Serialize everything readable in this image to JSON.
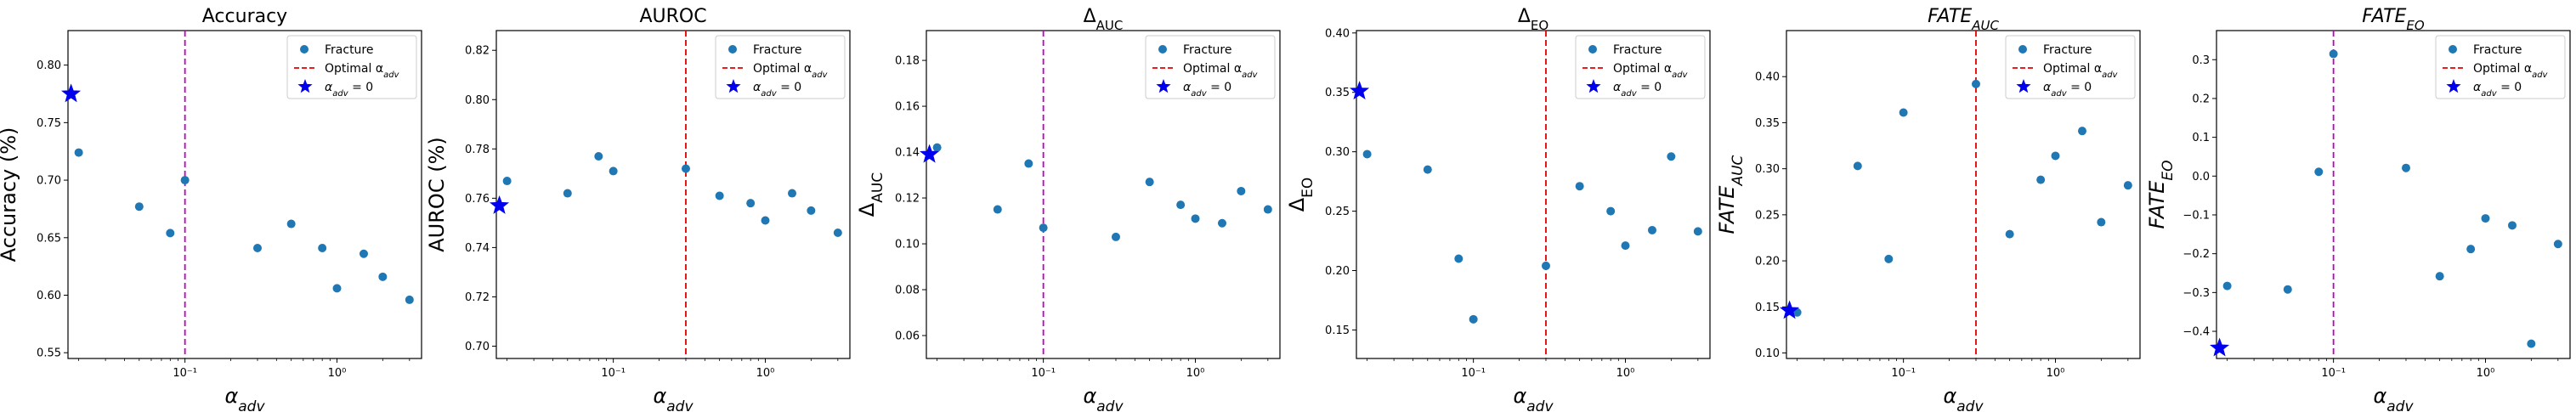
{
  "chart_data": [
    {
      "type": "scatter",
      "title": "Accuracy",
      "xlabel": "α_adv",
      "ylabel": "Accuracy (%)",
      "xscale": "log",
      "xlim": [
        0.017,
        3.6
      ],
      "ylim": [
        0.545,
        0.83
      ],
      "yticks": [
        0.55,
        0.6,
        0.65,
        0.7,
        0.75,
        0.8
      ],
      "ytick_labels": [
        "0.55",
        "0.60",
        "0.65",
        "0.70",
        "0.75",
        "0.80"
      ],
      "xtick_labels": [
        "10⁻¹",
        "10⁰"
      ],
      "vline": {
        "x": 0.1,
        "color": "#bf00bf",
        "style": "dashed"
      },
      "points": [
        {
          "x": 0.02,
          "y": 0.724
        },
        {
          "x": 0.05,
          "y": 0.677
        },
        {
          "x": 0.08,
          "y": 0.654
        },
        {
          "x": 0.1,
          "y": 0.7
        },
        {
          "x": 0.3,
          "y": 0.641
        },
        {
          "x": 0.5,
          "y": 0.662
        },
        {
          "x": 0.8,
          "y": 0.641
        },
        {
          "x": 1.0,
          "y": 0.606
        },
        {
          "x": 1.5,
          "y": 0.636
        },
        {
          "x": 2.0,
          "y": 0.616
        },
        {
          "x": 3.0,
          "y": 0.596
        }
      ],
      "star": {
        "x": 0.0178,
        "y": 0.775
      },
      "legend": {
        "placement": "top-right",
        "entries": [
          "Fracture",
          "Optimal α_adv",
          "α_adv = 0"
        ]
      }
    },
    {
      "type": "scatter",
      "title": "AUROC",
      "xlabel": "α_adv",
      "ylabel": "AUROC (%)",
      "xscale": "log",
      "xlim": [
        0.017,
        3.6
      ],
      "ylim": [
        0.695,
        0.828
      ],
      "yticks": [
        0.7,
        0.72,
        0.74,
        0.76,
        0.78,
        0.8,
        0.82
      ],
      "ytick_labels": [
        "0.70",
        "0.72",
        "0.74",
        "0.76",
        "0.78",
        "0.80",
        "0.82"
      ],
      "xtick_labels": [
        "10⁻¹",
        "10⁰"
      ],
      "vline": {
        "x": 0.3,
        "color": "#e00000",
        "style": "dashed"
      },
      "points": [
        {
          "x": 0.02,
          "y": 0.767
        },
        {
          "x": 0.05,
          "y": 0.762
        },
        {
          "x": 0.08,
          "y": 0.777
        },
        {
          "x": 0.1,
          "y": 0.771
        },
        {
          "x": 0.3,
          "y": 0.772
        },
        {
          "x": 0.5,
          "y": 0.761
        },
        {
          "x": 0.8,
          "y": 0.758
        },
        {
          "x": 1.0,
          "y": 0.751
        },
        {
          "x": 1.5,
          "y": 0.762
        },
        {
          "x": 2.0,
          "y": 0.755
        },
        {
          "x": 3.0,
          "y": 0.746
        }
      ],
      "star": {
        "x": 0.0178,
        "y": 0.757
      },
      "legend": {
        "placement": "top-right",
        "entries": [
          "Fracture",
          "Optimal α_adv",
          "α_adv = 0"
        ]
      }
    },
    {
      "type": "scatter",
      "title": "Δ_AUC",
      "xlabel": "α_adv",
      "ylabel": "Δ_AUC",
      "xscale": "log",
      "xlim": [
        0.017,
        3.6
      ],
      "ylim": [
        0.05,
        0.193
      ],
      "yticks": [
        0.06,
        0.08,
        0.1,
        0.12,
        0.14,
        0.16,
        0.18
      ],
      "ytick_labels": [
        "0.06",
        "0.08",
        "0.10",
        "0.12",
        "0.14",
        "0.16",
        "0.18"
      ],
      "xtick_labels": [
        "10⁻¹",
        "10⁰"
      ],
      "vline": {
        "x": 0.1,
        "color": "#bf00bf",
        "style": "dashed"
      },
      "points": [
        {
          "x": 0.02,
          "y": 0.142
        },
        {
          "x": 0.05,
          "y": 0.115
        },
        {
          "x": 0.08,
          "y": 0.135
        },
        {
          "x": 0.1,
          "y": 0.107
        },
        {
          "x": 0.3,
          "y": 0.103
        },
        {
          "x": 0.5,
          "y": 0.127
        },
        {
          "x": 0.8,
          "y": 0.117
        },
        {
          "x": 1.0,
          "y": 0.111
        },
        {
          "x": 1.5,
          "y": 0.109
        },
        {
          "x": 2.0,
          "y": 0.123
        },
        {
          "x": 3.0,
          "y": 0.115
        }
      ],
      "star": {
        "x": 0.0178,
        "y": 0.139
      },
      "legend": {
        "placement": "top-right",
        "entries": [
          "Fracture",
          "Optimal α_adv",
          "α_adv = 0"
        ]
      }
    },
    {
      "type": "scatter",
      "title": "Δ_EO",
      "xlabel": "α_adv",
      "ylabel": "Δ_EO",
      "xscale": "log",
      "xlim": [
        0.017,
        3.6
      ],
      "ylim": [
        0.126,
        0.402
      ],
      "yticks": [
        0.15,
        0.2,
        0.25,
        0.3,
        0.35,
        0.4
      ],
      "ytick_labels": [
        "0.15",
        "0.20",
        "0.25",
        "0.30",
        "0.35",
        "0.40"
      ],
      "xtick_labels": [
        "10⁻¹",
        "10⁰"
      ],
      "vline": {
        "x": 0.3,
        "color": "#e00000",
        "style": "dashed"
      },
      "points": [
        {
          "x": 0.02,
          "y": 0.298
        },
        {
          "x": 0.05,
          "y": 0.285
        },
        {
          "x": 0.08,
          "y": 0.21
        },
        {
          "x": 0.1,
          "y": 0.159
        },
        {
          "x": 0.3,
          "y": 0.204
        },
        {
          "x": 0.5,
          "y": 0.271
        },
        {
          "x": 0.8,
          "y": 0.25
        },
        {
          "x": 1.0,
          "y": 0.221
        },
        {
          "x": 1.5,
          "y": 0.234
        },
        {
          "x": 2.0,
          "y": 0.296
        },
        {
          "x": 3.0,
          "y": 0.233
        }
      ],
      "star": {
        "x": 0.0178,
        "y": 0.351
      },
      "legend": {
        "placement": "top-right",
        "entries": [
          "Fracture",
          "Optimal α_adv",
          "α_adv = 0"
        ]
      }
    },
    {
      "type": "scatter",
      "title": "FATE_AUC",
      "xlabel": "α_adv",
      "ylabel": "FATE_AUC",
      "xscale": "log",
      "xlim": [
        0.017,
        3.6
      ],
      "ylim": [
        0.094,
        0.45
      ],
      "yticks": [
        0.1,
        0.15,
        0.2,
        0.25,
        0.3,
        0.35,
        0.4
      ],
      "ytick_labels": [
        "0.10",
        "0.15",
        "0.20",
        "0.25",
        "0.30",
        "0.35",
        "0.40"
      ],
      "xtick_labels": [
        "10⁻¹",
        "10⁰"
      ],
      "vline": {
        "x": 0.3,
        "color": "#e00000",
        "style": "dashed"
      },
      "points": [
        {
          "x": 0.02,
          "y": 0.144
        },
        {
          "x": 0.05,
          "y": 0.303
        },
        {
          "x": 0.08,
          "y": 0.202
        },
        {
          "x": 0.1,
          "y": 0.361
        },
        {
          "x": 0.3,
          "y": 0.392
        },
        {
          "x": 0.5,
          "y": 0.229
        },
        {
          "x": 0.8,
          "y": 0.288
        },
        {
          "x": 1.0,
          "y": 0.314
        },
        {
          "x": 1.5,
          "y": 0.341
        },
        {
          "x": 2.0,
          "y": 0.242
        },
        {
          "x": 3.0,
          "y": 0.282
        }
      ],
      "star": {
        "x": 0.0178,
        "y": 0.146
      },
      "legend": {
        "placement": "top-right",
        "entries": [
          "Fracture",
          "Optimal α_adv",
          "α_adv = 0"
        ]
      }
    },
    {
      "type": "scatter",
      "title": "FATE_EO",
      "xlabel": "α_adv",
      "ylabel": "FATE_EO",
      "xscale": "log",
      "xlim": [
        0.017,
        3.6
      ],
      "ylim": [
        -0.47,
        0.375
      ],
      "yticks": [
        -0.4,
        -0.3,
        -0.2,
        -0.1,
        0.0,
        0.1,
        0.2,
        0.3
      ],
      "ytick_labels": [
        "−0.4",
        "−0.3",
        "−0.2",
        "−0.1",
        "0.0",
        "0.1",
        "0.2",
        "0.3"
      ],
      "xtick_labels": [
        "10⁻¹",
        "10⁰"
      ],
      "vline": {
        "x": 0.1,
        "color": "#bf00bf",
        "style": "dashed"
      },
      "points": [
        {
          "x": 0.02,
          "y": -0.283
        },
        {
          "x": 0.05,
          "y": -0.292
        },
        {
          "x": 0.08,
          "y": 0.011
        },
        {
          "x": 0.1,
          "y": 0.315
        },
        {
          "x": 0.3,
          "y": 0.021
        },
        {
          "x": 0.5,
          "y": -0.258
        },
        {
          "x": 0.8,
          "y": -0.188
        },
        {
          "x": 1.0,
          "y": -0.109
        },
        {
          "x": 1.5,
          "y": -0.127
        },
        {
          "x": 2.0,
          "y": -0.432
        },
        {
          "x": 3.0,
          "y": -0.175
        }
      ],
      "star": {
        "x": 0.0178,
        "y": -0.443
      },
      "legend": {
        "placement": "top-right",
        "entries": [
          "Fracture",
          "Optimal α_adv",
          "α_adv = 0"
        ]
      }
    }
  ],
  "colors": {
    "points": "#1f77b4",
    "star": "#0000ee",
    "vline_magenta": "#bf00bf",
    "vline_red": "#e00000"
  }
}
